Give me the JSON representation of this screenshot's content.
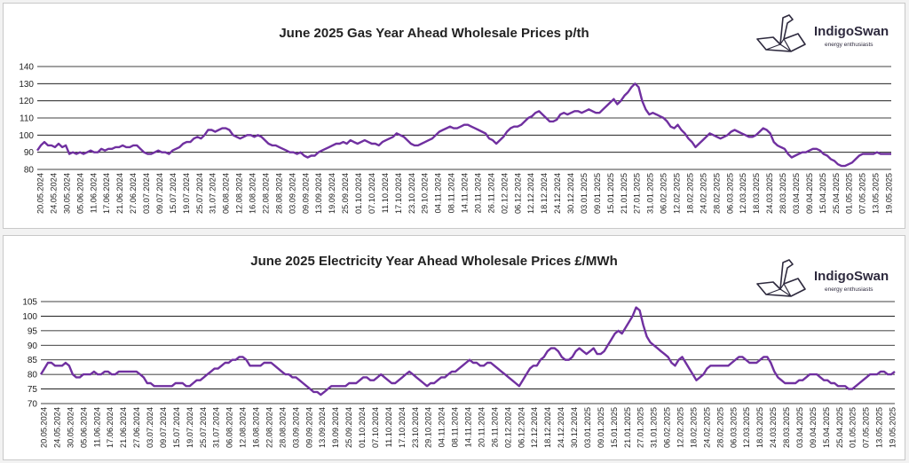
{
  "brand": {
    "name": "IndigoSwan",
    "tagline": "energy enthusiasts"
  },
  "colors": {
    "line": "#7030a0",
    "grid": "#000000",
    "text": "#222222"
  },
  "chart_data": [
    {
      "type": "line",
      "title": "June 2025 Gas Year Ahead Wholesale Prices p/th",
      "ylim": [
        80,
        140
      ],
      "yticks": [
        80,
        90,
        100,
        110,
        120,
        130,
        140
      ],
      "grid": true,
      "x_tick_labels": [
        "20.05.2024",
        "24.05.2024",
        "30.05.2024",
        "05.06.2024",
        "11.06.2024",
        "17.06.2024",
        "21.06.2024",
        "27.06.2024",
        "03.07.2024",
        "09.07.2024",
        "15.07.2024",
        "19.07.2024",
        "25.07.2024",
        "31.07.2024",
        "06.08.2024",
        "12.08.2024",
        "16.08.2024",
        "22.08.2024",
        "28.08.2024",
        "03.09.2024",
        "09.09.2024",
        "13.09.2024",
        "19.09.2024",
        "25.09.2024",
        "01.10.2024",
        "07.10.2024",
        "11.10.2024",
        "17.10.2024",
        "23.10.2024",
        "29.10.2024",
        "04.11.2024",
        "08.11.2024",
        "14.11.2024",
        "20.11.2024",
        "26.11.2024",
        "02.12.2024",
        "06.12.2024",
        "12.12.2024",
        "18.12.2024",
        "24.12.2024",
        "30.12.2024",
        "03.01.2025",
        "09.01.2025",
        "15.01.2025",
        "21.01.2025",
        "27.01.2025",
        "31.01.2025",
        "06.02.2025",
        "12.02.2025",
        "18.02.2025",
        "24.02.2025",
        "28.02.2025",
        "06.03.2025",
        "12.03.2025",
        "18.03.2025",
        "24.03.2025",
        "28.03.2025",
        "03.04.2025",
        "09.04.2025",
        "15.04.2025",
        "25.04.2025",
        "01.05.2025",
        "07.05.2025",
        "13.05.2025",
        "19.05.2025"
      ],
      "series": [
        {
          "values": [
            91,
            94,
            96,
            94,
            94,
            93,
            95,
            93,
            94,
            89,
            90,
            89,
            90,
            89,
            90,
            91,
            90,
            90,
            92,
            91,
            92,
            92,
            93,
            93,
            94,
            93,
            93,
            94,
            94,
            92,
            90,
            89,
            89,
            90,
            91,
            90,
            90,
            89,
            91,
            92,
            93,
            95,
            96,
            96,
            98,
            99,
            98,
            100,
            103,
            103,
            102,
            103,
            104,
            104,
            103,
            100,
            99,
            98,
            99,
            100,
            100,
            99,
            100,
            99,
            97,
            95,
            94,
            94,
            93,
            92,
            91,
            90,
            90,
            89,
            90,
            88,
            87,
            88,
            88,
            90,
            91,
            92,
            93,
            94,
            95,
            95,
            96,
            95,
            97,
            96,
            95,
            96,
            97,
            96,
            95,
            95,
            94,
            96,
            97,
            98,
            99,
            101,
            100,
            99,
            97,
            95,
            94,
            94,
            95,
            96,
            97,
            98,
            100,
            102,
            103,
            104,
            105,
            104,
            104,
            105,
            106,
            106,
            105,
            104,
            103,
            102,
            101,
            98,
            97,
            95,
            97,
            99,
            102,
            104,
            105,
            105,
            106,
            108,
            110,
            111,
            113,
            114,
            112,
            110,
            108,
            108,
            109,
            112,
            113,
            112,
            113,
            114,
            114,
            113,
            114,
            115,
            114,
            113,
            113,
            115,
            117,
            119,
            121,
            118,
            120,
            123,
            125,
            128,
            130,
            128,
            120,
            115,
            112,
            113,
            112,
            111,
            110,
            108,
            105,
            104,
            106,
            103,
            101,
            98,
            96,
            93,
            95,
            97,
            99,
            101,
            100,
            99,
            98,
            99,
            100,
            102,
            103,
            102,
            101,
            100,
            99,
            99,
            100,
            102,
            104,
            103,
            101,
            96,
            94,
            93,
            92,
            89,
            87,
            88,
            89,
            90,
            90,
            91,
            92,
            92,
            91,
            89,
            88,
            86,
            85,
            83,
            82,
            82,
            83,
            84,
            86,
            88,
            89,
            89,
            89,
            89,
            90,
            89,
            89,
            89,
            89
          ]
        }
      ]
    },
    {
      "type": "line",
      "title": "June 2025 Electricity Year Ahead Wholesale Prices £/MWh",
      "ylim": [
        70,
        105
      ],
      "yticks": [
        70,
        75,
        80,
        85,
        90,
        95,
        100,
        105
      ],
      "grid": true,
      "x_tick_labels": [
        "20.05.2024",
        "24.05.2024",
        "30.05.2024",
        "05.06.2024",
        "11.06.2024",
        "17.06.2024",
        "21.06.2024",
        "27.06.2024",
        "03.07.2024",
        "09.07.2024",
        "15.07.2024",
        "19.07.2024",
        "25.07.2024",
        "31.07.2024",
        "06.08.2024",
        "12.08.2024",
        "16.08.2024",
        "22.08.2024",
        "28.08.2024",
        "03.09.2024",
        "09.09.2024",
        "13.09.2024",
        "19.09.2024",
        "25.09.2024",
        "01.10.2024",
        "07.10.2024",
        "11.10.2024",
        "17.10.2024",
        "23.10.2024",
        "29.10.2024",
        "04.11.2024",
        "08.11.2024",
        "14.11.2024",
        "20.11.2024",
        "26.11.2024",
        "02.12.2024",
        "06.12.2024",
        "12.12.2024",
        "18.12.2024",
        "24.12.2024",
        "30.12.2024",
        "03.01.2025",
        "09.01.2025",
        "15.01.2025",
        "21.01.2025",
        "27.01.2025",
        "31.01.2025",
        "06.02.2025",
        "12.02.2025",
        "18.02.2025",
        "24.02.2025",
        "28.02.2025",
        "06.03.2025",
        "12.03.2025",
        "18.03.2025",
        "24.03.2025",
        "28.03.2025",
        "03.04.2025",
        "09.04.2025",
        "15.04.2025",
        "25.04.2025",
        "01.05.2025",
        "07.05.2025",
        "13.05.2025",
        "19.05.2025"
      ],
      "series": [
        {
          "values": [
            80,
            82,
            84,
            84,
            83,
            83,
            83,
            84,
            83,
            80,
            79,
            79,
            80,
            80,
            80,
            81,
            80,
            80,
            81,
            81,
            80,
            80,
            81,
            81,
            81,
            81,
            81,
            81,
            80,
            79,
            77,
            77,
            76,
            76,
            76,
            76,
            76,
            76,
            77,
            77,
            77,
            76,
            76,
            77,
            78,
            78,
            79,
            80,
            81,
            82,
            82,
            83,
            84,
            84,
            85,
            85,
            86,
            86,
            85,
            83,
            83,
            83,
            83,
            84,
            84,
            84,
            83,
            82,
            81,
            80,
            80,
            79,
            79,
            78,
            77,
            76,
            75,
            74,
            74,
            73,
            74,
            75,
            76,
            76,
            76,
            76,
            76,
            77,
            77,
            77,
            78,
            79,
            79,
            78,
            78,
            79,
            80,
            79,
            78,
            77,
            77,
            78,
            79,
            80,
            81,
            80,
            79,
            78,
            77,
            76,
            77,
            77,
            78,
            79,
            79,
            80,
            81,
            81,
            82,
            83,
            84,
            85,
            84,
            84,
            83,
            83,
            84,
            84,
            83,
            82,
            81,
            80,
            79,
            78,
            77,
            76,
            78,
            80,
            82,
            83,
            83,
            85,
            86,
            88,
            89,
            89,
            88,
            86,
            85,
            85,
            86,
            88,
            89,
            88,
            87,
            88,
            89,
            87,
            87,
            88,
            90,
            92,
            94,
            95,
            94,
            96,
            98,
            100,
            103,
            102,
            97,
            93,
            91,
            90,
            89,
            88,
            87,
            86,
            84,
            83,
            85,
            86,
            84,
            82,
            80,
            78,
            79,
            80,
            82,
            83,
            83,
            83,
            83,
            83,
            83,
            84,
            85,
            86,
            86,
            85,
            84,
            84,
            84,
            85,
            86,
            86,
            84,
            81,
            79,
            78,
            77,
            77,
            77,
            77,
            78,
            78,
            79,
            80,
            80,
            80,
            79,
            78,
            78,
            77,
            77,
            76,
            76,
            76,
            75,
            75,
            76,
            77,
            78,
            79,
            80,
            80,
            80,
            81,
            81,
            80,
            80,
            81
          ]
        }
      ]
    }
  ]
}
